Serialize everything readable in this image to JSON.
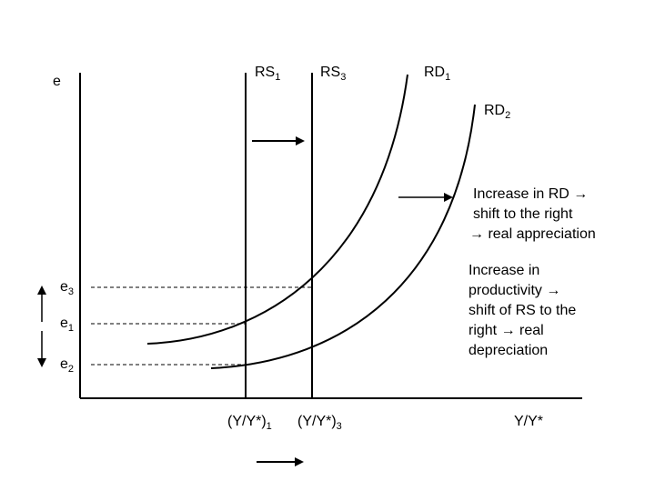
{
  "axes": {
    "y_label": "e",
    "x_label": "Y/Y*"
  },
  "curves": {
    "rs1": {
      "name": "RS",
      "sub": "1"
    },
    "rs3": {
      "name": "RS",
      "sub": "3"
    },
    "rd1": {
      "name": "RD",
      "sub": "1"
    },
    "rd2": {
      "name": "RD",
      "sub": "2"
    }
  },
  "y_ticks": {
    "e3": {
      "name": "e",
      "sub": "3"
    },
    "e1": {
      "name": "e",
      "sub": "1"
    },
    "e2": {
      "name": "e",
      "sub": "2"
    }
  },
  "x_ticks": {
    "yy1": {
      "name": "(Y/Y*)",
      "sub": "1"
    },
    "yy3": {
      "name": "(Y/Y*)",
      "sub": "3"
    }
  },
  "annotations": {
    "rd_shift": [
      "Increase in RD →",
      "shift to the right",
      "→ real appreciation"
    ],
    "productivity": [
      "Increase in",
      "productivity →",
      "shift of RS to the",
      "right → real",
      "depreciation"
    ]
  }
}
